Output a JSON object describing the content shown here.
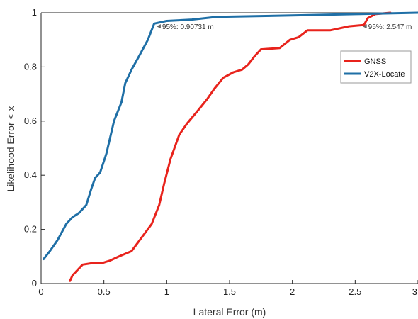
{
  "chart_data": {
    "type": "line",
    "xlabel": "Lateral Error (m)",
    "ylabel": "Likelihood Error < x",
    "xlim": [
      0,
      3
    ],
    "ylim": [
      0,
      1
    ],
    "x_ticks": [
      "0",
      "0.5",
      "1",
      "1.5",
      "2",
      "2.5",
      "3"
    ],
    "y_ticks": [
      "0",
      "0.2",
      "0.4",
      "0.6",
      "0.8",
      "1"
    ],
    "grid": false,
    "legend_position": "top-right",
    "series": [
      {
        "name": "GNSS",
        "color": "#e8231c",
        "points": [
          [
            0.23,
            0.01
          ],
          [
            0.25,
            0.03
          ],
          [
            0.29,
            0.05
          ],
          [
            0.33,
            0.07
          ],
          [
            0.4,
            0.075
          ],
          [
            0.48,
            0.075
          ],
          [
            0.55,
            0.085
          ],
          [
            0.62,
            0.1
          ],
          [
            0.72,
            0.12
          ],
          [
            0.8,
            0.17
          ],
          [
            0.88,
            0.22
          ],
          [
            0.94,
            0.29
          ],
          [
            0.98,
            0.37
          ],
          [
            1.03,
            0.46
          ],
          [
            1.1,
            0.55
          ],
          [
            1.16,
            0.59
          ],
          [
            1.25,
            0.64
          ],
          [
            1.32,
            0.68
          ],
          [
            1.38,
            0.72
          ],
          [
            1.45,
            0.76
          ],
          [
            1.53,
            0.78
          ],
          [
            1.6,
            0.79
          ],
          [
            1.65,
            0.81
          ],
          [
            1.7,
            0.84
          ],
          [
            1.75,
            0.865
          ],
          [
            1.9,
            0.87
          ],
          [
            1.98,
            0.9
          ],
          [
            2.05,
            0.91
          ],
          [
            2.12,
            0.935
          ],
          [
            2.3,
            0.935
          ],
          [
            2.45,
            0.95
          ],
          [
            2.57,
            0.955
          ],
          [
            2.6,
            0.98
          ],
          [
            2.66,
            0.995
          ],
          [
            2.78,
            1.0
          ]
        ]
      },
      {
        "name": "V2X-Locate",
        "color": "#1f6fa6",
        "points": [
          [
            0.02,
            0.09
          ],
          [
            0.07,
            0.12
          ],
          [
            0.13,
            0.16
          ],
          [
            0.2,
            0.22
          ],
          [
            0.25,
            0.245
          ],
          [
            0.3,
            0.26
          ],
          [
            0.36,
            0.29
          ],
          [
            0.4,
            0.35
          ],
          [
            0.43,
            0.39
          ],
          [
            0.47,
            0.41
          ],
          [
            0.52,
            0.48
          ],
          [
            0.58,
            0.6
          ],
          [
            0.64,
            0.67
          ],
          [
            0.67,
            0.74
          ],
          [
            0.72,
            0.79
          ],
          [
            0.78,
            0.84
          ],
          [
            0.85,
            0.9
          ],
          [
            0.9,
            0.96
          ],
          [
            1.0,
            0.97
          ],
          [
            1.2,
            0.975
          ],
          [
            1.4,
            0.985
          ],
          [
            2.0,
            0.99
          ],
          [
            2.5,
            0.995
          ],
          [
            3.0,
            1.0
          ]
        ]
      }
    ],
    "annotations": [
      {
        "text": "95%: 0.90731 m",
        "x": 0.9073,
        "y": 0.95
      },
      {
        "text": "95%: 2.547 m",
        "x": 2.547,
        "y": 0.95
      }
    ]
  }
}
